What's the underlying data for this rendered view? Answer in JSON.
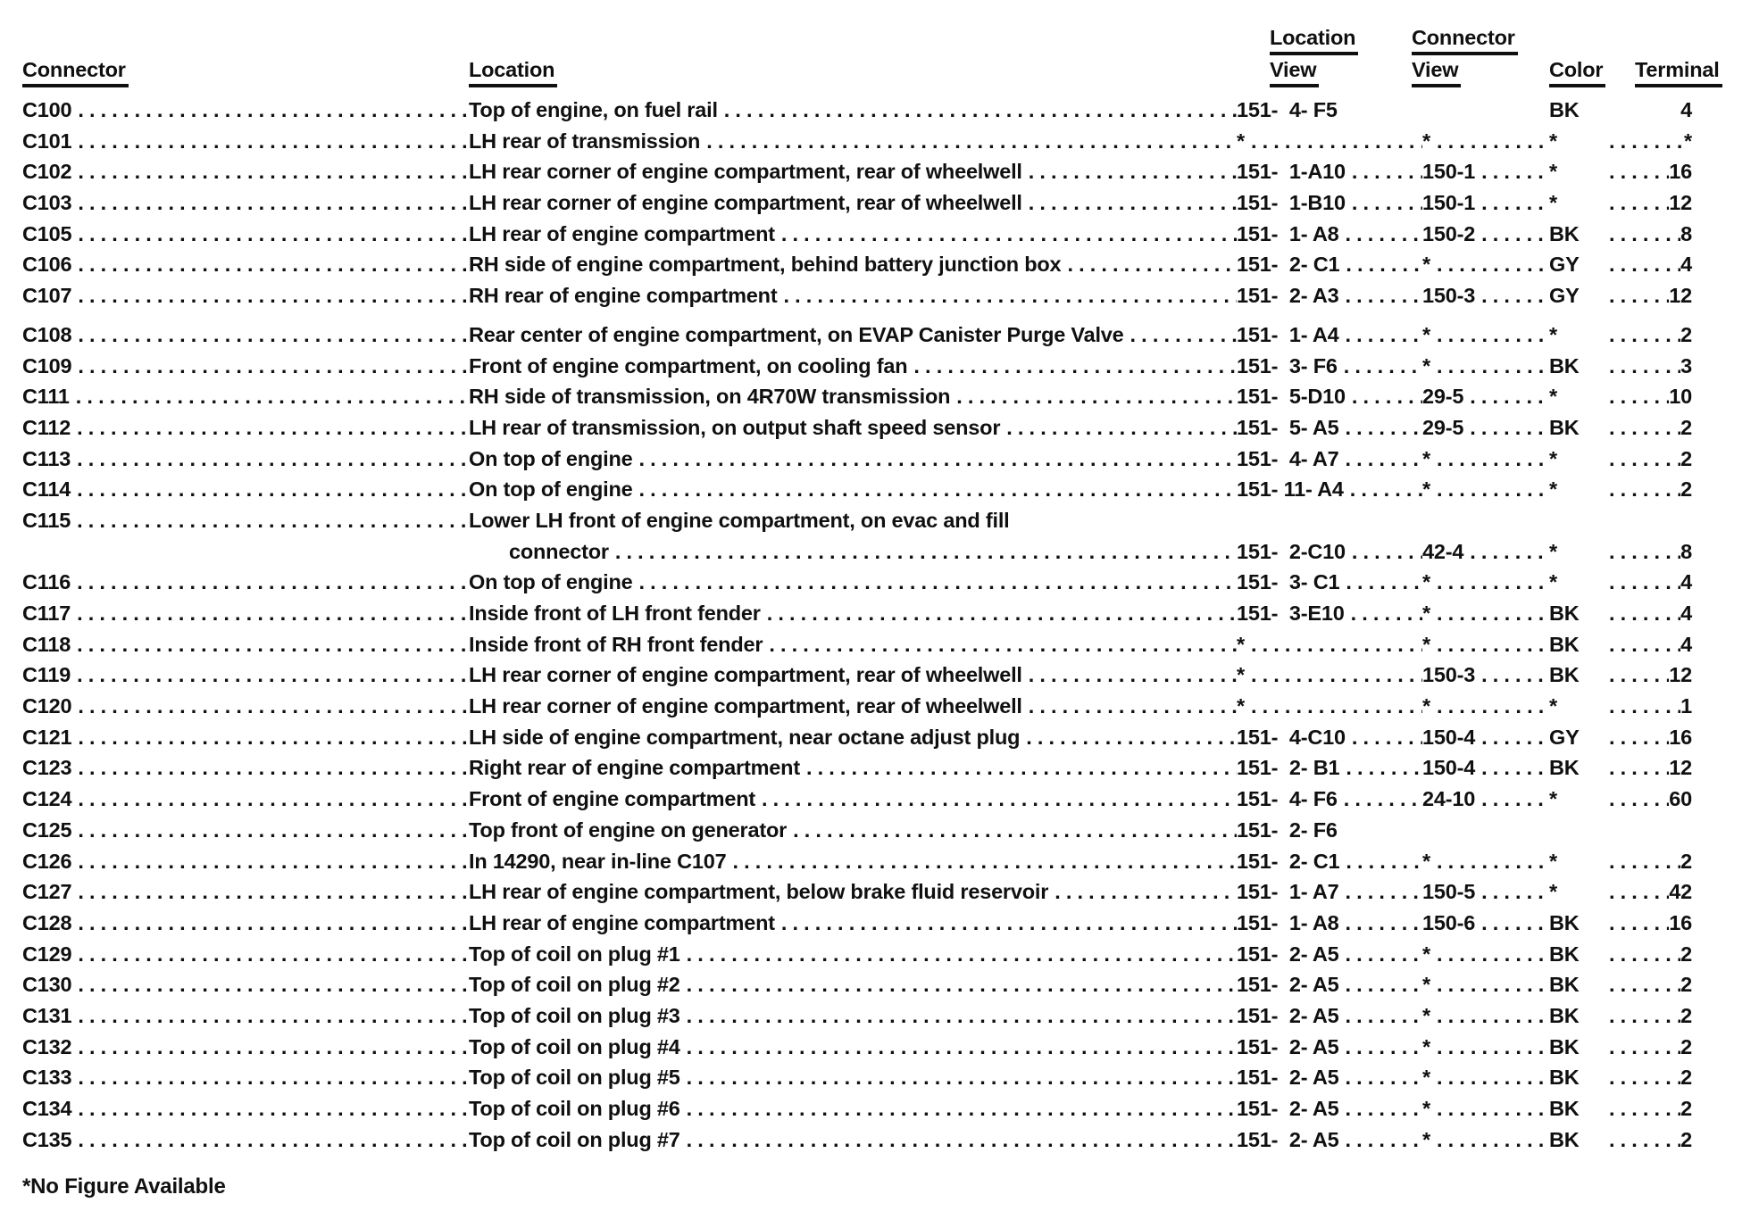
{
  "colors": {
    "text": "#101010",
    "background": "#ffffff"
  },
  "header": {
    "connector": "Connector",
    "location": "Location",
    "location_view_line1": "Location",
    "location_view_line2": "View",
    "connector_view_line1": "Connector",
    "connector_view_line2": "View",
    "color": "Color",
    "terminal": "Terminal"
  },
  "table": {
    "rows": [
      {
        "connector": "C100",
        "location": "Top of engine, on fuel rail",
        "location_view": "151-  4- F5",
        "connector_view": "",
        "color": "BK",
        "terminal": "4",
        "leaders": "none"
      },
      {
        "connector": "C101",
        "location": "LH rear of transmission",
        "location_view": "*",
        "connector_view": "*",
        "color": "*",
        "terminal": "*",
        "leaders": "full"
      },
      {
        "connector": "C102",
        "location": "LH rear corner of engine compartment, rear of wheelwell",
        "location_view": "151-  1-A10",
        "connector_view": "150-1",
        "color": "*",
        "terminal": "16",
        "leaders": "full"
      },
      {
        "connector": "C103",
        "location": "LH rear corner of engine compartment, rear of wheelwell",
        "location_view": "151-  1-B10",
        "connector_view": "150-1",
        "color": "*",
        "terminal": "12",
        "leaders": "full"
      },
      {
        "connector": "C105",
        "location": "LH rear of engine compartment",
        "location_view": "151-  1- A8",
        "connector_view": "150-2",
        "color": "BK",
        "terminal": "8",
        "leaders": "full"
      },
      {
        "connector": "C106",
        "location": "RH side of engine compartment, behind battery junction box",
        "location_view": "151-  2- C1",
        "connector_view": "*",
        "color": "GY",
        "terminal": "4",
        "leaders": "full"
      },
      {
        "connector": "C107",
        "location": "RH rear of engine compartment",
        "location_view": "151-  2- A3",
        "connector_view": "150-3",
        "color": "GY",
        "terminal": "12",
        "leaders": "full"
      },
      {
        "connector": "C108",
        "location": "Rear center of engine compartment, on EVAP Canister Purge Valve",
        "location_view": "151-  1- A4",
        "connector_view": "*",
        "color": "*",
        "terminal": "2",
        "leaders": "full",
        "gap_before": true
      },
      {
        "connector": "C109",
        "location": "Front of engine compartment, on cooling fan",
        "location_view": "151-  3- F6",
        "connector_view": "*",
        "color": "BK",
        "terminal": "3",
        "leaders": "full"
      },
      {
        "connector": "C111",
        "location": "RH side of transmission, on 4R70W transmission",
        "location_view": "151-  5-D10",
        "connector_view": "29-5",
        "color": "*",
        "terminal": "10",
        "leaders": "full"
      },
      {
        "connector": "C112",
        "location": "LH rear of transmission, on output shaft speed sensor",
        "location_view": "151-  5- A5",
        "connector_view": "29-5",
        "color": "BK",
        "terminal": "2",
        "leaders": "full"
      },
      {
        "connector": "C113",
        "location": "On top of engine",
        "location_view": "151-  4- A7",
        "connector_view": "*",
        "color": "*",
        "terminal": "2",
        "leaders": "full"
      },
      {
        "connector": "C114",
        "location": "On top of engine",
        "location_view": "151- 11- A4",
        "connector_view": "*",
        "color": "*",
        "terminal": "2",
        "leaders": "full"
      },
      {
        "connector": "C115",
        "location": "Lower LH front of engine compartment, on evac and fill",
        "location2": "connector",
        "location_view": "151-  2-C10",
        "connector_view": "42-4",
        "color": "*",
        "terminal": "8",
        "leaders": "full"
      },
      {
        "connector": "C116",
        "location": "On top of engine",
        "location_view": "151-  3- C1",
        "connector_view": "*",
        "color": "*",
        "terminal": "4",
        "leaders": "full"
      },
      {
        "connector": "C117",
        "location": "Inside front of LH front fender",
        "location_view": "151-  3-E10",
        "connector_view": "*",
        "color": "BK",
        "terminal": "4",
        "leaders": "full"
      },
      {
        "connector": "C118",
        "location": "Inside front of RH front fender",
        "location_view": "*",
        "connector_view": "*",
        "color": "BK",
        "terminal": "4",
        "leaders": "full"
      },
      {
        "connector": "C119",
        "location": "LH rear corner of engine compartment, rear of wheelwell",
        "location_view": "*",
        "connector_view": "150-3",
        "color": "BK",
        "terminal": "12",
        "leaders": "full"
      },
      {
        "connector": "C120",
        "location": "LH rear corner of engine compartment, rear of wheelwell",
        "location_view": "*",
        "connector_view": "*",
        "color": "*",
        "terminal": "1",
        "leaders": "full"
      },
      {
        "connector": "C121",
        "location": "LH side of engine compartment, near octane adjust plug",
        "location_view": "151-  4-C10",
        "connector_view": "150-4",
        "color": "GY",
        "terminal": "16",
        "leaders": "full"
      },
      {
        "connector": "C123",
        "location": "Right rear of engine compartment",
        "location_view": "151-  2- B1",
        "connector_view": "150-4",
        "color": "BK",
        "terminal": "12",
        "leaders": "full"
      },
      {
        "connector": "C124",
        "location": "Front of engine compartment",
        "location_view": "151-  4- F6",
        "connector_view": "24-10",
        "color": "*",
        "terminal": "60",
        "leaders": "full"
      },
      {
        "connector": "C125",
        "location": "Top front of engine on generator",
        "location_view": "151-  2- F6",
        "connector_view": "",
        "color": "",
        "terminal": "",
        "leaders": "none"
      },
      {
        "connector": "C126",
        "location": "In 14290, near in-line C107",
        "location_view": "151-  2- C1",
        "connector_view": "*",
        "color": "*",
        "terminal": "2",
        "leaders": "full"
      },
      {
        "connector": "C127",
        "location": "LH rear of engine compartment, below brake fluid reservoir",
        "location_view": "151-  1- A7",
        "connector_view": "150-5",
        "color": "*",
        "terminal": "42",
        "leaders": "full"
      },
      {
        "connector": "C128",
        "location": "LH rear of engine compartment",
        "location_view": "151-  1- A8",
        "connector_view": "150-6",
        "color": "BK",
        "terminal": "16",
        "leaders": "full"
      },
      {
        "connector": "C129",
        "location": "Top of coil on plug #1",
        "location_view": "151-  2- A5",
        "connector_view": "*",
        "color": "BK",
        "terminal": "2",
        "leaders": "full"
      },
      {
        "connector": "C130",
        "location": "Top of coil on plug #2",
        "location_view": "151-  2- A5",
        "connector_view": "*",
        "color": "BK",
        "terminal": "2",
        "leaders": "full"
      },
      {
        "connector": "C131",
        "location": "Top of coil on plug #3",
        "location_view": "151-  2- A5",
        "connector_view": "*",
        "color": "BK",
        "terminal": "2",
        "leaders": "full"
      },
      {
        "connector": "C132",
        "location": "Top of coil on plug #4",
        "location_view": "151-  2- A5",
        "connector_view": "*",
        "color": "BK",
        "terminal": "2",
        "leaders": "full"
      },
      {
        "connector": "C133",
        "location": "Top of coil on plug #5",
        "location_view": "151-  2- A5",
        "connector_view": "*",
        "color": "BK",
        "terminal": "2",
        "leaders": "full"
      },
      {
        "connector": "C134",
        "location": "Top of coil on plug #6",
        "location_view": "151-  2- A5",
        "connector_view": "*",
        "color": "BK",
        "terminal": "2",
        "leaders": "full"
      },
      {
        "connector": "C135",
        "location": "Top of coil on plug #7",
        "location_view": "151-  2- A5",
        "connector_view": "*",
        "color": "BK",
        "terminal": "2",
        "leaders": "full"
      }
    ]
  },
  "footnote": "*No Figure Available"
}
